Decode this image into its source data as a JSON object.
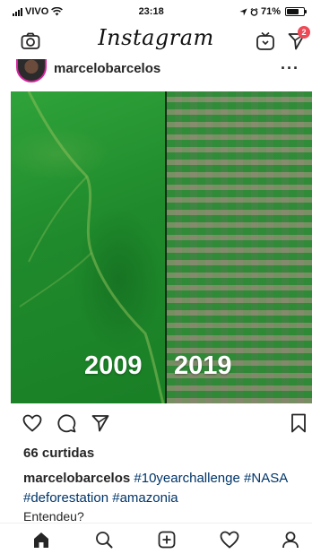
{
  "status_bar": {
    "carrier": "VIVO",
    "time": "23:18",
    "battery_percent": "71%",
    "battery_level": 0.71
  },
  "top_nav": {
    "brand": "Instagram",
    "notification_count": "2"
  },
  "post": {
    "username": "marcelobarcelos",
    "more_label": "···",
    "image": {
      "left_year": "2009",
      "right_year": "2019"
    },
    "likes_text": "66 curtidas",
    "caption": {
      "username": "marcelobarcelos",
      "hashtags": [
        "#10yearchallenge",
        "#NASA",
        "#deforestation",
        "#amazonia"
      ]
    },
    "caption_more": "Entendeu?"
  },
  "icons": {
    "camera": "camera-icon",
    "igtv": "igtv-icon",
    "direct": "direct-message-icon",
    "like": "heart-icon",
    "comment": "comment-icon",
    "share": "share-icon",
    "save": "bookmark-icon",
    "home": "home-icon",
    "search": "search-icon",
    "add": "add-post-icon",
    "activity": "activity-heart-icon",
    "profile": "profile-icon"
  },
  "colors": {
    "badge": "#ed4956",
    "hashtag": "#003569",
    "text": "#262626"
  }
}
